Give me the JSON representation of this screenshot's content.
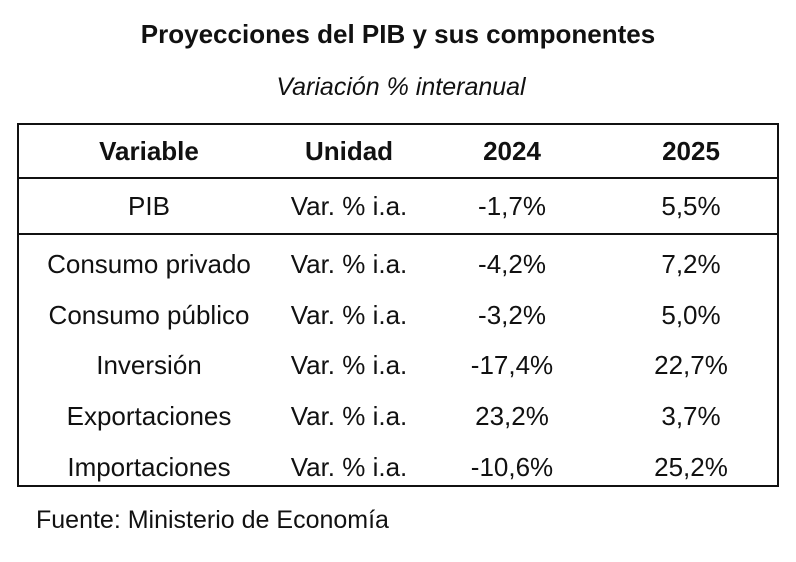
{
  "title": "Proyecciones del PIB y sus componentes",
  "subtitle": "Variación % interanual",
  "table": {
    "headers": [
      "Variable",
      "Unidad",
      "2024",
      "2025"
    ],
    "pib_row": [
      "PIB",
      "Var. % i.a.",
      "-1,7%",
      "5,5%"
    ],
    "rows": [
      [
        "Consumo privado",
        "Var. % i.a.",
        "-4,2%",
        "7,2%"
      ],
      [
        "Consumo público",
        "Var. % i.a.",
        "-3,2%",
        "5,0%"
      ],
      [
        "Inversión",
        "Var. % i.a.",
        "-17,4%",
        "22,7%"
      ],
      [
        "Exportaciones",
        "Var. % i.a.",
        "23,2%",
        "3,7%"
      ],
      [
        "Importaciones",
        "Var. % i.a.",
        "-10,6%",
        "25,2%"
      ]
    ]
  },
  "source": "Fuente: Ministerio de Economía"
}
